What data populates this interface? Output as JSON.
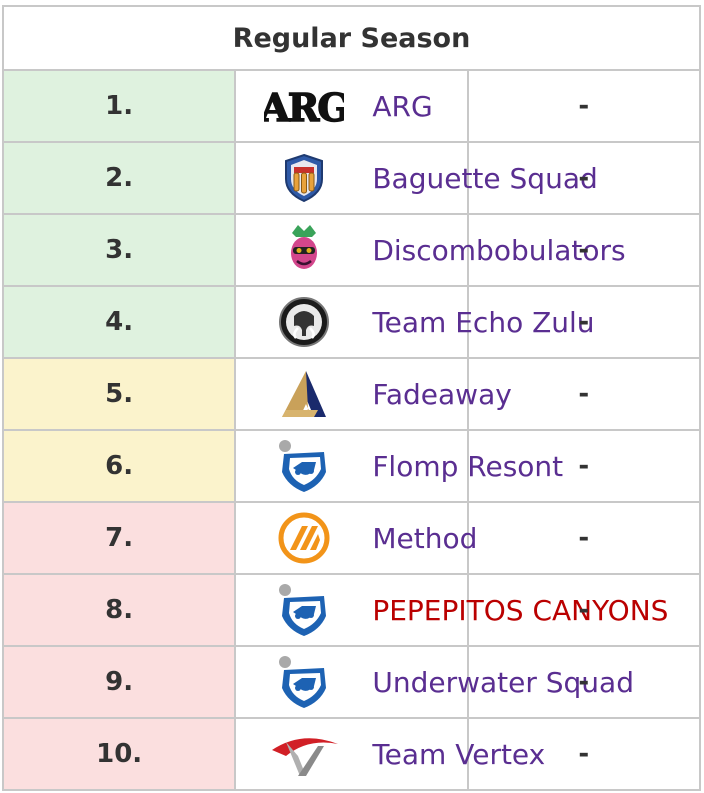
{
  "title": "Regular Season",
  "colors": {
    "green": "#dff2df",
    "yellow": "#fbf3cc",
    "red": "#fbdfdf",
    "team_link": "#5a2e91",
    "red_link": "#ba0000"
  },
  "rows": [
    {
      "rank": "1.",
      "team": "ARG",
      "score": "-",
      "tier": "green",
      "logo": "arg-wordmark-logo"
    },
    {
      "rank": "2.",
      "team": "Baguette Squad",
      "score": "-",
      "tier": "green",
      "logo": "baguette-shield-logo"
    },
    {
      "rank": "3.",
      "team": "Discombobulators",
      "score": "-",
      "tier": "green",
      "logo": "pink-head-logo"
    },
    {
      "rank": "4.",
      "team": "Team Echo Zulu",
      "score": "-",
      "tier": "green",
      "logo": "mammoth-badge-logo"
    },
    {
      "rank": "5.",
      "team": "Fadeaway",
      "score": "-",
      "tier": "yellow",
      "logo": "fadeaway-logo"
    },
    {
      "rank": "6.",
      "team": "Flomp Resont",
      "score": "-",
      "tier": "yellow",
      "logo": "rocket-league-logo"
    },
    {
      "rank": "7.",
      "team": "Method",
      "score": "-",
      "tier": "red",
      "logo": "method-logo"
    },
    {
      "rank": "8.",
      "team": "PEPEPITOS CANYONS",
      "score": "-",
      "tier": "red",
      "logo": "rocket-league-logo",
      "redlink": true
    },
    {
      "rank": "9.",
      "team": "Underwater Squad",
      "score": "-",
      "tier": "red",
      "logo": "rocket-league-logo"
    },
    {
      "rank": "10.",
      "team": "Team Vertex",
      "score": "-",
      "tier": "red",
      "logo": "vertex-logo"
    }
  ]
}
